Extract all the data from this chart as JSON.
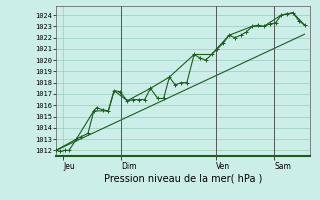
{
  "xlabel": "Pression niveau de la mer( hPa )",
  "bg_color": "#cceee8",
  "grid_color": "#99ccbb",
  "line_color": "#1a5e1a",
  "ylim": [
    1011.5,
    1024.8
  ],
  "yticks": [
    1012,
    1013,
    1014,
    1015,
    1016,
    1017,
    1018,
    1019,
    1020,
    1021,
    1022,
    1023,
    1024
  ],
  "xlim": [
    0,
    175
  ],
  "xtick_positions": [
    5,
    45,
    110,
    150
  ],
  "xtick_labels": [
    "Jeu",
    "Dim",
    "Ven",
    "Sam"
  ],
  "vline_positions": [
    45,
    110,
    150
  ],
  "series1": [
    [
      0,
      1012.0
    ],
    [
      3,
      1011.9
    ],
    [
      6,
      1012.0
    ],
    [
      9,
      1012.0
    ],
    [
      14,
      1013.0
    ],
    [
      17,
      1013.2
    ],
    [
      22,
      1013.5
    ],
    [
      26,
      1015.5
    ],
    [
      28,
      1015.8
    ],
    [
      32,
      1015.6
    ],
    [
      36,
      1015.5
    ],
    [
      40,
      1017.3
    ],
    [
      44,
      1017.2
    ],
    [
      49,
      1016.4
    ],
    [
      53,
      1016.5
    ],
    [
      57,
      1016.5
    ],
    [
      61,
      1016.5
    ],
    [
      65,
      1017.5
    ],
    [
      70,
      1016.6
    ],
    [
      74,
      1016.6
    ],
    [
      78,
      1018.5
    ],
    [
      82,
      1017.8
    ],
    [
      86,
      1018.0
    ],
    [
      90,
      1018.0
    ],
    [
      95,
      1020.5
    ],
    [
      99,
      1020.2
    ],
    [
      103,
      1020.0
    ],
    [
      107,
      1020.5
    ],
    [
      111,
      1021.0
    ],
    [
      115,
      1021.5
    ],
    [
      119,
      1022.2
    ],
    [
      123,
      1022.0
    ],
    [
      127,
      1022.2
    ],
    [
      131,
      1022.5
    ],
    [
      135,
      1023.0
    ],
    [
      139,
      1023.1
    ],
    [
      143,
      1023.0
    ],
    [
      147,
      1023.2
    ],
    [
      151,
      1023.3
    ],
    [
      155,
      1024.0
    ],
    [
      159,
      1024.1
    ],
    [
      163,
      1024.2
    ],
    [
      167,
      1023.5
    ],
    [
      171,
      1023.1
    ]
  ],
  "series2": [
    [
      0,
      1012.0
    ],
    [
      14,
      1013.0
    ],
    [
      26,
      1015.5
    ],
    [
      36,
      1015.5
    ],
    [
      40,
      1017.3
    ],
    [
      49,
      1016.4
    ],
    [
      65,
      1017.5
    ],
    [
      78,
      1018.5
    ],
    [
      95,
      1020.5
    ],
    [
      107,
      1020.5
    ],
    [
      119,
      1022.2
    ],
    [
      135,
      1023.0
    ],
    [
      143,
      1023.0
    ],
    [
      155,
      1024.0
    ],
    [
      163,
      1024.2
    ],
    [
      171,
      1023.1
    ]
  ],
  "series3": [
    [
      0,
      1012.0
    ],
    [
      171,
      1022.3
    ]
  ]
}
